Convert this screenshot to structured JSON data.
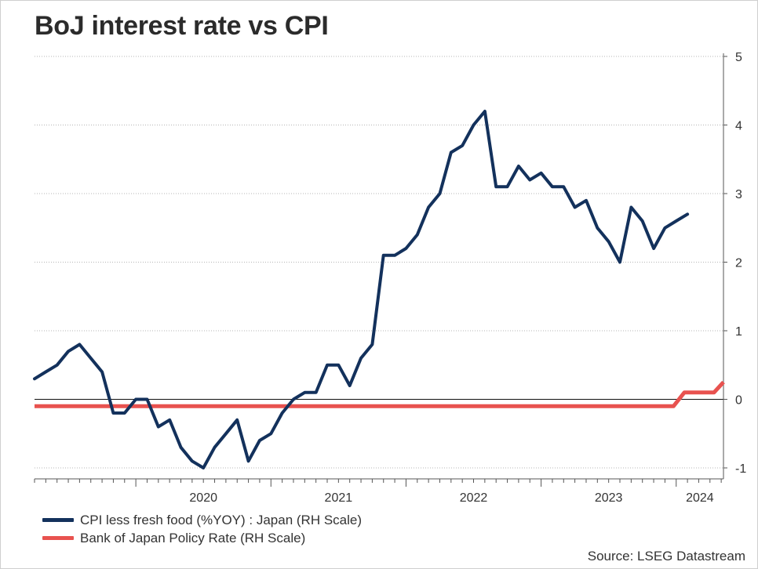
{
  "chart_data": {
    "type": "line",
    "title": "BoJ interest rate vs CPI",
    "xlabel": "",
    "ylabel": "",
    "ylim": [
      -1,
      5
    ],
    "y_ticks": [
      "5",
      "4",
      "3",
      "2",
      "1",
      "0",
      "-1"
    ],
    "y_tick_values": [
      5,
      4,
      3,
      2,
      1,
      0,
      -1
    ],
    "x_tick_labels": [
      "2020",
      "2021",
      "2022",
      "2023",
      "2024"
    ],
    "x_tick_years": [
      2020,
      2021,
      2022,
      2023,
      2024
    ],
    "x_start": 2019.25,
    "x_end": 2024.35,
    "axis_side": "right",
    "grid": true,
    "legend_position": "bottom-left",
    "colors": {
      "cpi": "#13315c",
      "policy": "#e8524f"
    },
    "series": [
      {
        "name": "CPI less fresh food (%YOY) : Japan (RH Scale)",
        "key": "cpi",
        "start_year": 2019,
        "start_month": 4,
        "values": [
          0.3,
          0.4,
          0.5,
          0.7,
          0.8,
          0.6,
          0.4,
          -0.2,
          -0.2,
          0.0,
          0.0,
          -0.4,
          -0.3,
          -0.7,
          -0.9,
          -1.0,
          -0.7,
          -0.5,
          -0.3,
          -0.9,
          -0.6,
          -0.5,
          -0.2,
          0.0,
          0.1,
          0.1,
          0.5,
          0.5,
          0.2,
          0.6,
          0.8,
          2.1,
          2.1,
          2.2,
          2.4,
          2.8,
          3.0,
          3.6,
          3.7,
          4.0,
          4.2,
          3.1,
          3.1,
          3.4,
          3.2,
          3.3,
          3.1,
          3.1,
          2.8,
          2.9,
          2.5,
          2.3,
          2.0,
          2.8,
          2.6,
          2.2,
          2.5,
          2.6,
          2.7
        ]
      },
      {
        "name": "Bank of Japan Policy Rate (RH Scale)",
        "key": "policy",
        "segments": [
          [
            2019.25,
            -0.1
          ],
          [
            2023.98,
            -0.1
          ],
          [
            2024.06,
            0.1
          ],
          [
            2024.28,
            0.1
          ],
          [
            2024.35,
            0.25
          ]
        ]
      }
    ]
  },
  "legend": {
    "items": [
      {
        "label": "CPI less fresh food (%YOY) : Japan (RH Scale)",
        "color": "#13315c"
      },
      {
        "label": "Bank of Japan Policy Rate (RH Scale)",
        "color": "#e8524f"
      }
    ]
  },
  "source": "Source: LSEG Datastream"
}
